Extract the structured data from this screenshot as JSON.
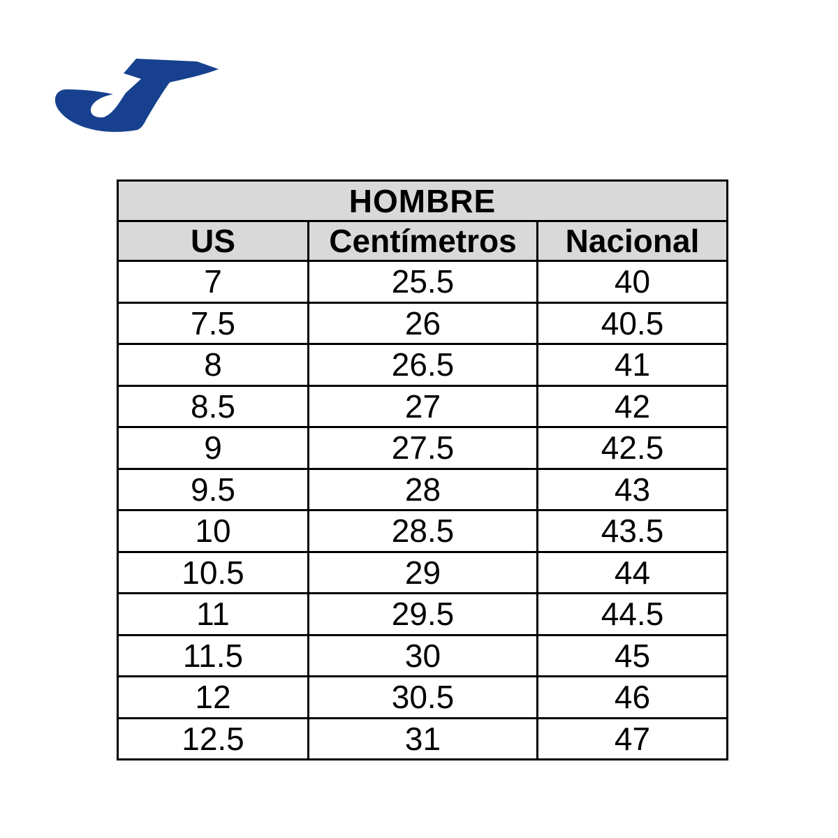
{
  "page": {
    "background_color": "#ffffff",
    "text_color": "#000000"
  },
  "logo": {
    "brand": "Joma",
    "color": "#17418f"
  },
  "chart_data": {
    "type": "table",
    "title": "HOMBRE",
    "columns": [
      "US",
      "Centímetros",
      "Nacional"
    ],
    "rows": [
      [
        "7",
        "25.5",
        "40"
      ],
      [
        "7.5",
        "26",
        "40.5"
      ],
      [
        "8",
        "26.5",
        "41"
      ],
      [
        "8.5",
        "27",
        "42"
      ],
      [
        "9",
        "27.5",
        "42.5"
      ],
      [
        "9.5",
        "28",
        "43"
      ],
      [
        "10",
        "28.5",
        "43.5"
      ],
      [
        "10.5",
        "29",
        "44"
      ],
      [
        "11",
        "29.5",
        "44.5"
      ],
      [
        "11.5",
        "30",
        "45"
      ],
      [
        "12",
        "30.5",
        "46"
      ],
      [
        "12.5",
        "31",
        "47"
      ]
    ],
    "layout": {
      "header_bg": "#d9d9d9",
      "border_color": "#000000",
      "grid": true,
      "legend": false
    }
  }
}
